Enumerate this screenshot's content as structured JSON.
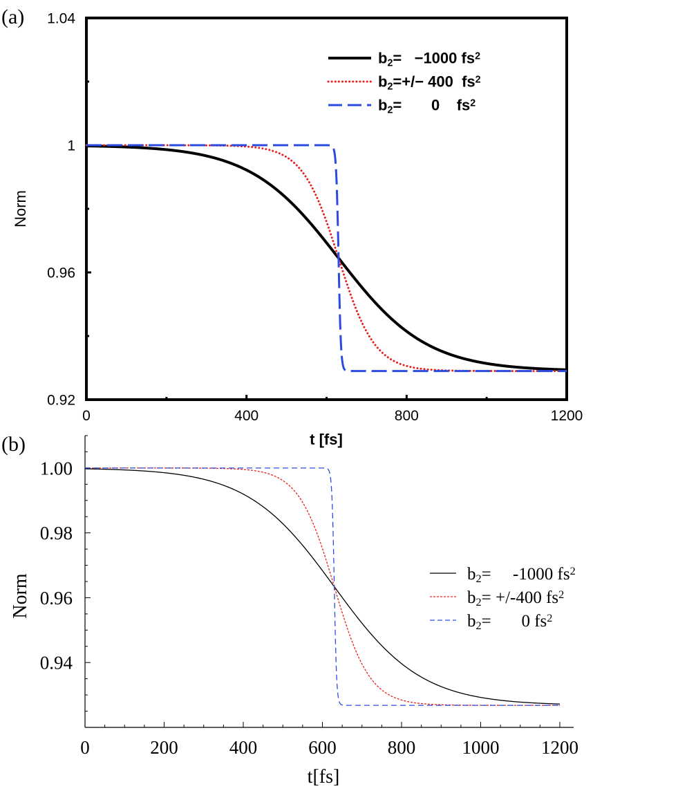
{
  "chart_data": [
    {
      "type": "line",
      "panel_label": "(a)",
      "title": "",
      "xlabel": "t [fs]",
      "ylabel": "Norm",
      "xlim": [
        0,
        1200
      ],
      "ylim": [
        0.92,
        1.04
      ],
      "xticks": [
        0,
        400,
        800,
        1200
      ],
      "xtick_labels": [
        "0",
        "400",
        "800",
        "1200"
      ],
      "yticks": [
        0.92,
        0.96,
        1.0,
        1.04
      ],
      "ytick_labels": [
        "0.92",
        "0.96",
        "1",
        "1.04"
      ],
      "legend_position": "top-right",
      "grid": false,
      "series": [
        {
          "name": "b2= −1000 fs2",
          "legend_lead": "b",
          "legend_sub": "2",
          "legend_mid": "=   −1000 fs",
          "legend_sup": "2",
          "color": "#000000",
          "style": "solid",
          "width": 4,
          "center": 630,
          "width_fs": 110
        },
        {
          "name": "b2=+/− 400 fs2",
          "legend_lead": "b",
          "legend_sub": "2",
          "legend_mid": "=+/− 400  fs",
          "legend_sup": "2",
          "color": "#e8201e",
          "style": "dotted",
          "width": 3,
          "center": 630,
          "width_fs": 45
        },
        {
          "name": "b2= 0 fs2",
          "legend_lead": "b",
          "legend_sub": "2",
          "legend_mid": "=       0    fs",
          "legend_sup": "2",
          "color": "#2b4be0",
          "style": "dashed",
          "width": 3,
          "center": 630,
          "width_fs": 3
        }
      ],
      "y_start": 1.0,
      "y_end": 0.929
    },
    {
      "type": "line",
      "panel_label": "(b)",
      "title": "",
      "xlabel": "t[fs]",
      "ylabel": "Norm",
      "xlim": [
        0,
        1200
      ],
      "ylim": [
        0.92,
        1.01
      ],
      "xticks": [
        0,
        200,
        400,
        600,
        800,
        1000,
        1200
      ],
      "xtick_labels": [
        "0",
        "200",
        "400",
        "600",
        "800",
        "1000",
        "1200"
      ],
      "yticks": [
        0.94,
        0.96,
        0.98,
        1.0
      ],
      "ytick_labels": [
        "0.94",
        "0.96",
        "0.98",
        "1.00"
      ],
      "legend_position": "center-right",
      "grid": false,
      "series": [
        {
          "name": "b2= -1000 fs2",
          "legend_lead": "b",
          "legend_sub": "2",
          "legend_mid": "=     -1000 fs",
          "legend_sup": "2",
          "color": "#000000",
          "style": "solid",
          "width": 1.3,
          "center": 630,
          "width_fs": 110
        },
        {
          "name": "b2= +/-400 fs2",
          "legend_lead": "b",
          "legend_sub": "2",
          "legend_mid": "= +/-400 fs",
          "legend_sup": "2",
          "color": "#e8201e",
          "style": "dashed-fine",
          "width": 1.3,
          "center": 630,
          "width_fs": 45
        },
        {
          "name": "b2= 0 fs2",
          "legend_lead": "b",
          "legend_sub": "2",
          "legend_mid": "=       0 fs",
          "legend_sup": "2",
          "color": "#2b4be0",
          "style": "dashed",
          "width": 1.3,
          "center": 630,
          "width_fs": 3
        }
      ],
      "y_start": 1.0,
      "y_end": 0.9268
    }
  ]
}
